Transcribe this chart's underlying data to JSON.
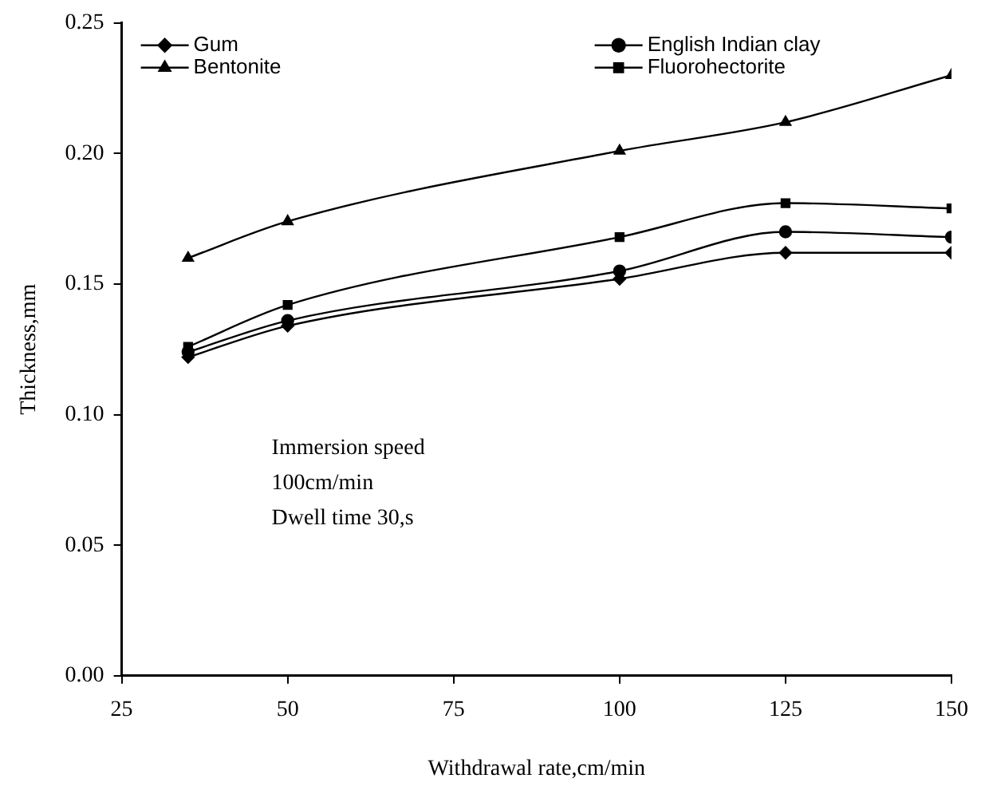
{
  "chart_data": {
    "type": "line",
    "xlabel": "Withdrawal rate,cm/min",
    "ylabel": "Thickness,mm",
    "x": [
      35,
      50,
      100,
      125,
      150
    ],
    "series": [
      {
        "name": "Gum",
        "color": "#000000",
        "marker": "diamond",
        "values": [
          0.122,
          0.134,
          0.152,
          0.162,
          0.162
        ]
      },
      {
        "name": "English Indian clay",
        "color": "#000000",
        "marker": "circle",
        "values": [
          0.124,
          0.136,
          0.155,
          0.17,
          0.168
        ]
      },
      {
        "name": "Bentonite",
        "color": "#000000",
        "marker": "triangle",
        "values": [
          0.16,
          0.174,
          0.201,
          0.212,
          0.23
        ]
      },
      {
        "name": "Fluorohectorite",
        "color": "#000000",
        "marker": "square",
        "values": [
          0.126,
          0.142,
          0.168,
          0.181,
          0.179
        ]
      }
    ],
    "xlim": [
      25,
      150
    ],
    "xticks": [
      25,
      50,
      75,
      100,
      125,
      150
    ],
    "ylim": [
      0,
      0.25
    ],
    "yticks": [
      {
        "value": 0,
        "label": "0.00"
      },
      {
        "value": 0.05,
        "label": "0.05"
      },
      {
        "value": 0.1,
        "label": "0.10"
      },
      {
        "value": 0.15,
        "label": "0.15"
      },
      {
        "value": 0.2,
        "label": "0.20"
      },
      {
        "value": 0.25,
        "label": "0.25"
      }
    ],
    "grid": false,
    "legend": "top",
    "annotations": [
      "Immersion speed",
      "100cm/min",
      "Dwell time 30,s"
    ]
  }
}
